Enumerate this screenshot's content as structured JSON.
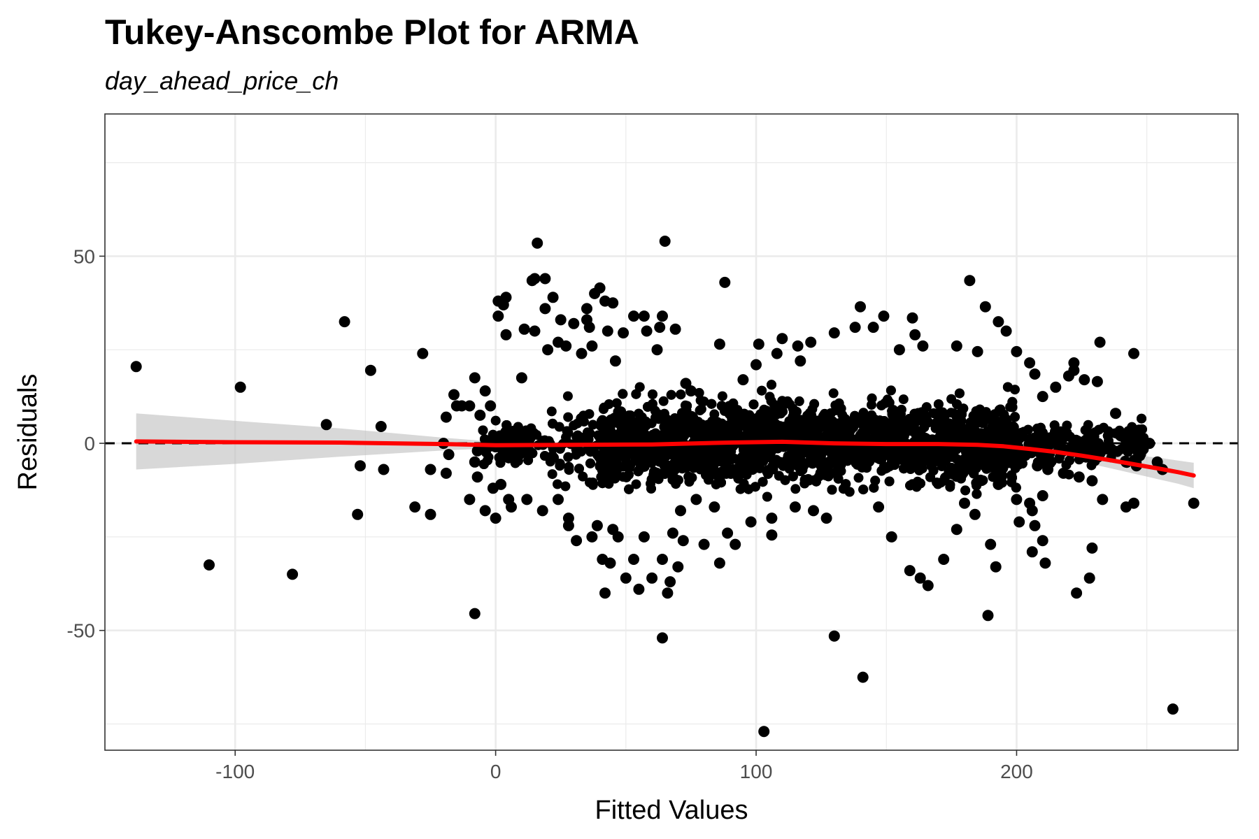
{
  "chart_data": {
    "type": "scatter",
    "title": "Tukey-Anscombe Plot for ARMA",
    "subtitle": "day_ahead_price_ch",
    "xlabel": "Fitted Values",
    "ylabel": "Residuals",
    "xlim": [
      -150,
      285
    ],
    "ylim": [
      -82,
      88
    ],
    "x_ticks": [
      -100,
      0,
      100,
      200
    ],
    "x_tick_labels": [
      "-100",
      "0",
      "100",
      "200"
    ],
    "y_ticks": [
      -50,
      0,
      50
    ],
    "y_tick_labels": [
      "-50",
      "0",
      "50"
    ],
    "grid": true,
    "reference_line": {
      "y": 0,
      "style": "dashed",
      "color": "#000000"
    },
    "colors": {
      "points": "#000000",
      "smooth": "#ff0000",
      "band": "#bebebe",
      "grid": "#ebebeb",
      "panel_border": "#333333"
    },
    "points": [
      [
        -138,
        20.5
      ],
      [
        -110,
        -32.5
      ],
      [
        -98,
        15
      ],
      [
        -78,
        -35
      ],
      [
        -65,
        5
      ],
      [
        -58,
        32.5
      ],
      [
        -53,
        -19
      ],
      [
        -52,
        -6
      ],
      [
        -48,
        19.5
      ],
      [
        -44,
        4.5
      ],
      [
        -43,
        -7
      ],
      [
        -31,
        -17
      ],
      [
        -28,
        24
      ],
      [
        -25,
        -19
      ],
      [
        -25,
        -7
      ],
      [
        -20,
        0
      ],
      [
        -19,
        7
      ],
      [
        -19,
        -8
      ],
      [
        -18,
        -3
      ],
      [
        -16,
        13
      ],
      [
        -15,
        10
      ],
      [
        -13,
        10
      ],
      [
        -10,
        10
      ],
      [
        -10,
        -15
      ],
      [
        -8,
        17.5
      ],
      [
        -8,
        -5
      ],
      [
        -8,
        -45.5
      ],
      [
        -7,
        -2
      ],
      [
        -7,
        -9
      ],
      [
        -6,
        7.5
      ],
      [
        -4,
        14
      ],
      [
        -4,
        -18
      ],
      [
        -2,
        10
      ],
      [
        -1,
        -12
      ],
      [
        0,
        -20
      ],
      [
        1,
        38
      ],
      [
        1,
        34
      ],
      [
        3,
        37
      ],
      [
        4,
        39
      ],
      [
        5,
        -15
      ],
      [
        4,
        29
      ],
      [
        10,
        17.5
      ],
      [
        11,
        30.5
      ],
      [
        14,
        43.5
      ],
      [
        15,
        44
      ],
      [
        15,
        30
      ],
      [
        16,
        53.5
      ],
      [
        19,
        44
      ],
      [
        19,
        36
      ],
      [
        22,
        39
      ],
      [
        20,
        25
      ],
      [
        24,
        27
      ],
      [
        25,
        33
      ],
      [
        27,
        26
      ],
      [
        28,
        -22
      ],
      [
        30,
        32
      ],
      [
        33,
        24
      ],
      [
        35,
        36
      ],
      [
        35,
        33
      ],
      [
        36,
        31
      ],
      [
        37,
        26
      ],
      [
        38,
        40
      ],
      [
        40,
        41.5
      ],
      [
        42,
        38
      ],
      [
        43,
        30
      ],
      [
        45,
        37.5
      ],
      [
        46,
        22
      ],
      [
        49,
        29.5
      ],
      [
        53,
        34
      ],
      [
        57,
        34
      ],
      [
        58,
        30
      ],
      [
        62,
        25
      ],
      [
        65,
        54
      ],
      [
        63,
        31
      ],
      [
        64,
        34
      ],
      [
        69,
        30.5
      ],
      [
        73,
        16
      ],
      [
        75,
        14
      ],
      [
        86,
        26.5
      ],
      [
        88,
        43
      ],
      [
        95,
        17
      ],
      [
        100,
        21
      ],
      [
        101,
        26.5
      ],
      [
        108,
        24
      ],
      [
        110,
        28
      ],
      [
        116,
        26
      ],
      [
        117,
        22
      ],
      [
        121,
        27
      ],
      [
        130,
        29.5
      ],
      [
        138,
        31
      ],
      [
        140,
        36.5
      ],
      [
        145,
        31
      ],
      [
        149,
        34
      ],
      [
        155,
        25
      ],
      [
        160,
        33.5
      ],
      [
        161,
        29
      ],
      [
        164,
        26
      ],
      [
        177,
        26
      ],
      [
        182,
        43.5
      ],
      [
        185,
        24.5
      ],
      [
        188,
        36.5
      ],
      [
        193,
        32.5
      ],
      [
        196,
        30
      ],
      [
        200,
        24.5
      ],
      [
        205,
        21.5
      ],
      [
        207,
        18.5
      ],
      [
        210,
        12.5
      ],
      [
        215,
        15
      ],
      [
        220,
        18
      ],
      [
        222,
        21.5
      ],
      [
        222,
        19.5
      ],
      [
        226,
        17
      ],
      [
        231,
        16.5
      ],
      [
        232,
        27
      ],
      [
        238,
        8
      ],
      [
        240,
        2
      ],
      [
        245,
        24
      ],
      [
        243,
        3
      ],
      [
        247,
        3.5
      ],
      [
        251,
        0
      ],
      [
        242,
        -5
      ],
      [
        246,
        -6
      ],
      [
        254,
        -5
      ],
      [
        256,
        -7
      ],
      [
        226,
        0.5
      ],
      [
        230,
        -4
      ],
      [
        229,
        -10
      ],
      [
        224,
        -9
      ],
      [
        218,
        -8
      ],
      [
        212,
        -7
      ],
      [
        208,
        -6
      ],
      [
        210,
        -14
      ],
      [
        205,
        -16
      ],
      [
        201,
        -21
      ],
      [
        206,
        -18
      ],
      [
        207,
        -22
      ],
      [
        210,
        -26
      ],
      [
        211,
        -32
      ],
      [
        206,
        -29
      ],
      [
        200,
        -15
      ],
      [
        193,
        -11
      ],
      [
        190,
        -27
      ],
      [
        192,
        -33
      ],
      [
        189,
        -46
      ],
      [
        184,
        -19
      ],
      [
        180,
        -16
      ],
      [
        177,
        -23
      ],
      [
        172,
        -31
      ],
      [
        166,
        -38
      ],
      [
        163,
        -36
      ],
      [
        159,
        -34
      ],
      [
        152,
        -25
      ],
      [
        147,
        -17
      ],
      [
        141,
        -62.5
      ],
      [
        130,
        -51.5
      ],
      [
        127,
        -20
      ],
      [
        122,
        -18
      ],
      [
        115,
        -17
      ],
      [
        106,
        -20
      ],
      [
        106,
        -24.5
      ],
      [
        103,
        -77
      ],
      [
        98,
        -21
      ],
      [
        92,
        -27
      ],
      [
        89,
        -24
      ],
      [
        86,
        -32
      ],
      [
        84,
        -17
      ],
      [
        80,
        -27
      ],
      [
        77,
        -15
      ],
      [
        72,
        -26
      ],
      [
        71,
        -18
      ],
      [
        68,
        -24
      ],
      [
        70,
        -33
      ],
      [
        67,
        -37
      ],
      [
        66,
        -40
      ],
      [
        64,
        -31
      ],
      [
        64,
        -52
      ],
      [
        60,
        -36
      ],
      [
        57,
        -25
      ],
      [
        55,
        -39
      ],
      [
        53,
        -31
      ],
      [
        50,
        -36
      ],
      [
        47,
        -25
      ],
      [
        45,
        -23
      ],
      [
        44,
        -32
      ],
      [
        42,
        -40
      ],
      [
        41,
        -31
      ],
      [
        39,
        -22
      ],
      [
        37,
        -25
      ],
      [
        31,
        -26
      ],
      [
        28,
        -20
      ],
      [
        24,
        -15
      ],
      [
        18,
        -18
      ],
      [
        12,
        -15
      ],
      [
        6,
        -17
      ],
      [
        2,
        -11
      ],
      [
        268,
        -16
      ],
      [
        260,
        -71
      ],
      [
        228,
        -36
      ],
      [
        223,
        -40
      ],
      [
        229,
        -28
      ],
      [
        233,
        -15
      ],
      [
        242,
        -17
      ],
      [
        245,
        -16
      ]
    ],
    "cloud": {
      "x_range": [
        -5,
        250
      ],
      "residual_band": [
        -17,
        17
      ]
    },
    "smooth_curve": {
      "x": [
        -138,
        -100,
        -60,
        -20,
        0,
        30,
        60,
        90,
        110,
        130,
        150,
        170,
        185,
        195,
        205,
        215,
        225,
        235,
        245,
        255,
        262,
        268
      ],
      "y": [
        0.5,
        0.3,
        0.2,
        -0.2,
        -0.5,
        -0.4,
        -0.3,
        0.2,
        0.4,
        0,
        -0.2,
        -0.2,
        -0.4,
        -0.8,
        -1.5,
        -2.3,
        -3.3,
        -4.4,
        -5.6,
        -6.8,
        -7.7,
        -8.6
      ]
    },
    "confidence_band": {
      "x": [
        -138,
        -100,
        -60,
        -20,
        0,
        30,
        60,
        90,
        110,
        130,
        150,
        170,
        185,
        195,
        205,
        215,
        225,
        235,
        245,
        255,
        262,
        268
      ],
      "upper": [
        8,
        6,
        4,
        1.5,
        0.4,
        0.2,
        0.3,
        0.8,
        1,
        0.6,
        0.4,
        0.4,
        0.3,
        0,
        -0.5,
        -1,
        -1.6,
        -2.3,
        -3.1,
        -3.9,
        -4.6,
        -5.2
      ],
      "lower": [
        -7,
        -5.5,
        -3.6,
        -1.9,
        -1.3,
        -1,
        -0.9,
        -0.4,
        -0.2,
        -0.6,
        -0.8,
        -0.8,
        -1.1,
        -1.6,
        -2.5,
        -3.6,
        -5,
        -6.5,
        -8.1,
        -9.7,
        -10.8,
        -12
      ]
    }
  }
}
